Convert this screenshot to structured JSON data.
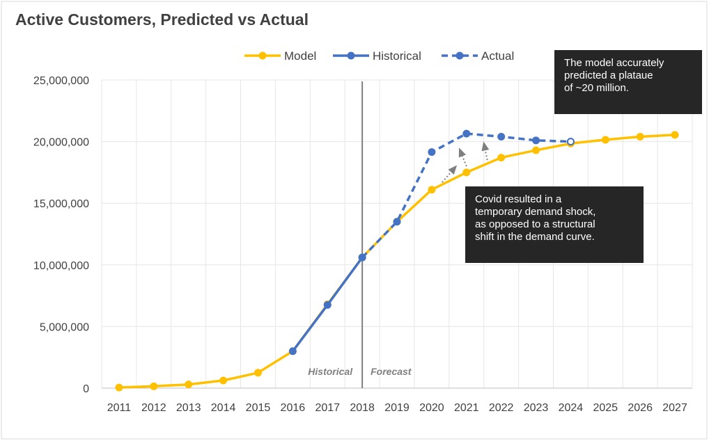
{
  "chart_data": {
    "type": "line",
    "title": "Active Customers, Predicted vs Actual",
    "xlabel": "",
    "ylabel": "",
    "categories": [
      "2011",
      "2012",
      "2013",
      "2014",
      "2015",
      "2016",
      "2017",
      "2018",
      "2019",
      "2020",
      "2021",
      "2022",
      "2023",
      "2024",
      "2025",
      "2026",
      "2027"
    ],
    "ylim": [
      0,
      25000000
    ],
    "yticks": [
      0,
      5000000,
      10000000,
      15000000,
      20000000,
      25000000
    ],
    "ytick_labels": [
      "0",
      "5,000,000",
      "10,000,000",
      "15,000,000",
      "20,000,000",
      "25,000,000"
    ],
    "grid": "on",
    "legend_position": "top",
    "series": [
      {
        "name": "Model",
        "color": "#FFC000",
        "style": "solid",
        "values": [
          50000,
          150000,
          300000,
          620000,
          1250000,
          3000000,
          6800000,
          10600000,
          13500000,
          16100000,
          17500000,
          18700000,
          19300000,
          19850000,
          20150000,
          20400000,
          20550000
        ]
      },
      {
        "name": "Historical",
        "color": "#4472C4",
        "style": "solid",
        "values": [
          null,
          null,
          null,
          null,
          null,
          3000000,
          6750000,
          10600000,
          null,
          null,
          null,
          null,
          null,
          null,
          null,
          null,
          null
        ]
      },
      {
        "name": "Actual",
        "color": "#4472C4",
        "style": "dashed",
        "values": [
          null,
          null,
          null,
          null,
          null,
          null,
          null,
          10600000,
          13500000,
          19150000,
          20650000,
          20400000,
          20100000,
          20000000,
          null,
          null,
          null
        ]
      }
    ],
    "divider_category": "2018",
    "region_labels": {
      "left": "Historical",
      "right": "Forecast"
    },
    "annotations": [
      "The model accurately\npredicted a plataue\nof ~20 million.",
      "Covid resulted in a\ntemporary demand shock,\nas opposed to a structural\nshift in the demand curve."
    ]
  }
}
